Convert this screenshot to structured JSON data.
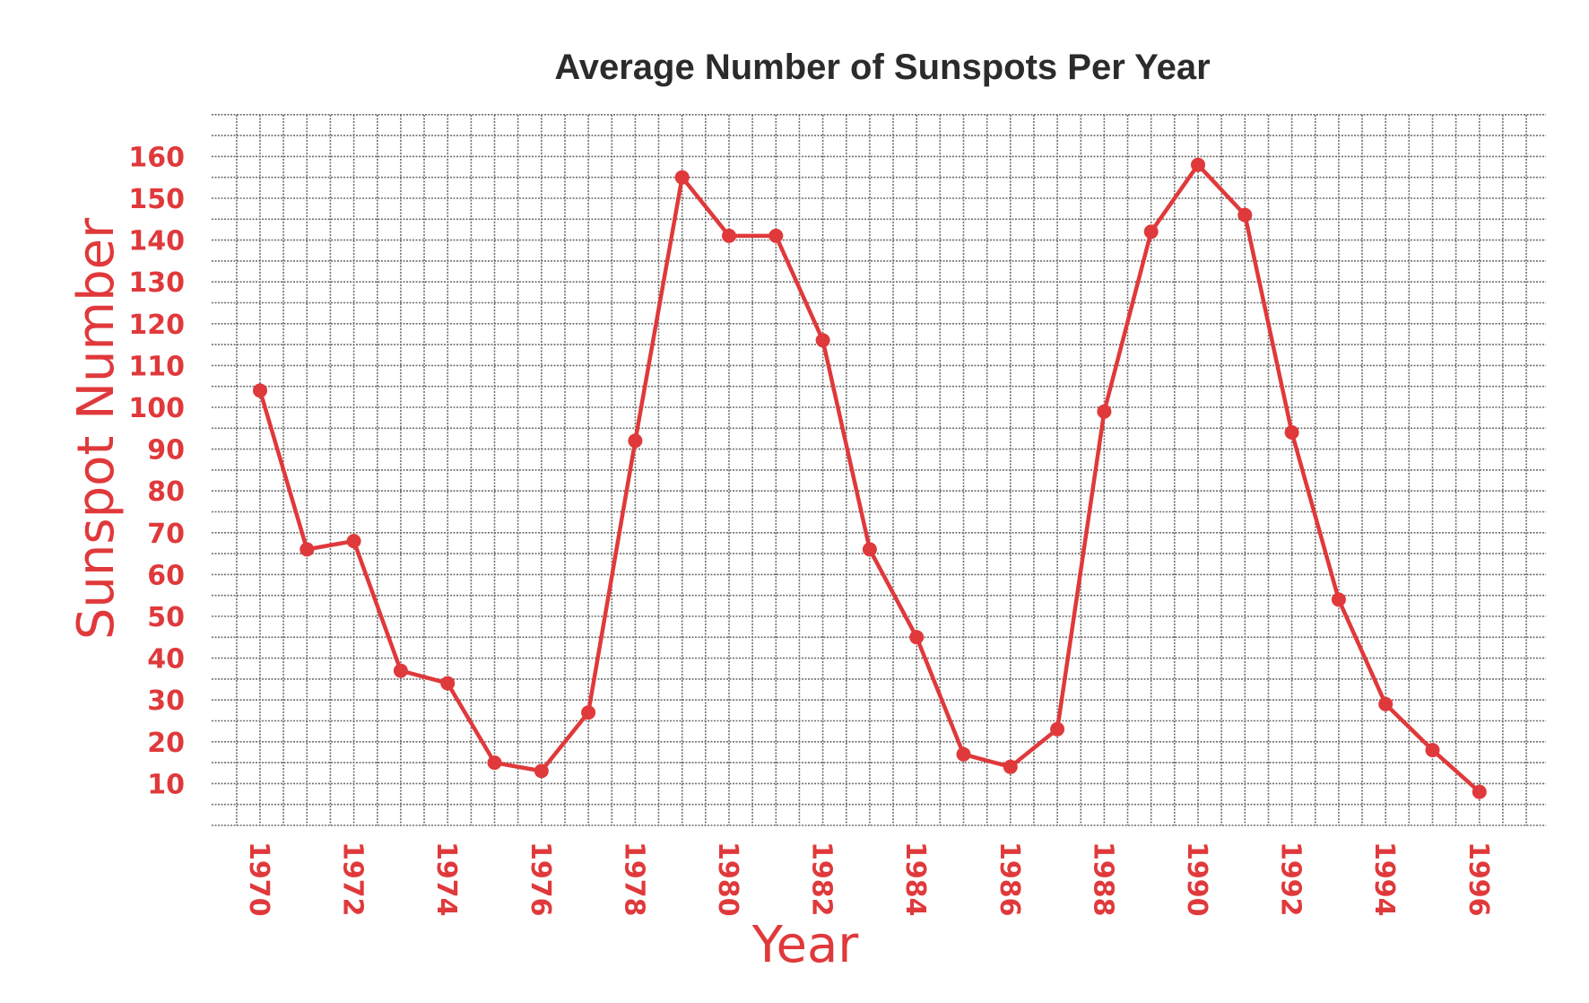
{
  "chart_data": {
    "type": "line",
    "title": "Average Number of Sunspots Per Year",
    "xlabel": "Year",
    "ylabel": "Sunspot Number",
    "xlim": [
      1970,
      1996
    ],
    "ylim": [
      0,
      160
    ],
    "grid": true,
    "y_ticks": [
      10,
      20,
      30,
      40,
      50,
      60,
      70,
      80,
      90,
      100,
      110,
      120,
      130,
      140,
      150,
      160
    ],
    "x_tick_labels": [
      "1970",
      "1972",
      "1974",
      "1976",
      "1978",
      "1980",
      "1982",
      "1984",
      "1986",
      "1988",
      "1990",
      "1992",
      "1994",
      "1996"
    ],
    "colors": {
      "line": "#e0393b",
      "grid": "#6e6e6e",
      "label": "#e0393b",
      "title": "#2b2b2b"
    },
    "series": [
      {
        "x": [
          1970,
          1971,
          1972,
          1973,
          1974,
          1975,
          1976,
          1977,
          1978,
          1979,
          1980,
          1981,
          1982,
          1983,
          1984,
          1985,
          1986,
          1987,
          1988,
          1989,
          1990,
          1991,
          1992,
          1993,
          1994,
          1995,
          1996
        ],
        "values": [
          104,
          66,
          68,
          37,
          34,
          15,
          13,
          27,
          92,
          155,
          141,
          141,
          116,
          66,
          45,
          17,
          14,
          23,
          99,
          142,
          158,
          146,
          94,
          54,
          29,
          18,
          8
        ]
      }
    ]
  }
}
